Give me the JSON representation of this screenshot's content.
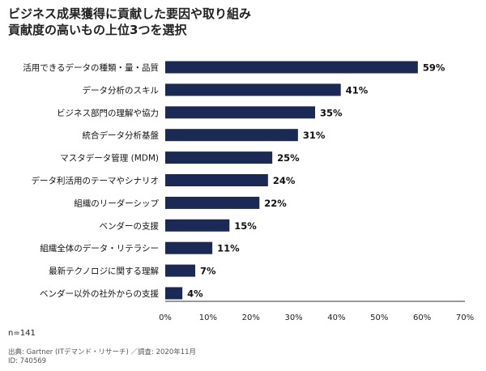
{
  "title": "ビジネス成果獲得に貢献した要因や取り組み",
  "subtitle": "貢献度の高いもの上位3つを選択",
  "footer": {
    "n": "n=141",
    "source": "出典: Gartner (ITデマンド・リサーチ) ／調査: 2020年11月",
    "id": "ID: 740569"
  },
  "colors": {
    "bar": "#1b2a55"
  },
  "chart_data": {
    "type": "bar",
    "orientation": "horizontal",
    "title": "ビジネス成果獲得に貢献した要因や取り組み",
    "subtitle": "貢献度の高いもの上位3つを選択",
    "categories": [
      "活用できるデータの種類・量・品質",
      "データ分析のスキル",
      "ビジネス部門の理解や協力",
      "統合データ分析基盤",
      "マスタデータ管理 (MDM)",
      "データ利活用のテーマやシナリオ",
      "組織のリーダーシップ",
      "ベンダーの支援",
      "組織全体のデータ・リテラシー",
      "最新テクノロジに関する理解",
      "ベンダー以外の社外からの支援"
    ],
    "values": [
      59,
      41,
      35,
      31,
      25,
      24,
      22,
      15,
      11,
      7,
      4
    ],
    "value_labels": [
      "59%",
      "41%",
      "35%",
      "31%",
      "25%",
      "24%",
      "22%",
      "15%",
      "11%",
      "7%",
      "4%"
    ],
    "xticks": [
      "0%",
      "10%",
      "20%",
      "30%",
      "40%",
      "50%",
      "60%",
      "70%"
    ],
    "xlim": [
      0,
      70
    ],
    "grid": false
  }
}
